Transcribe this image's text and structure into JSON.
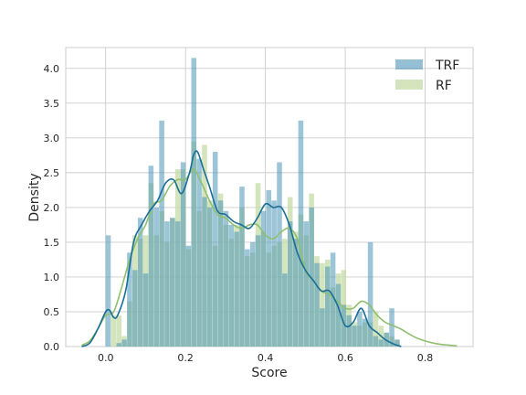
{
  "chart_data": {
    "type": "histogram",
    "xlabel": "Score",
    "ylabel": "Density",
    "xlim": [
      -0.1,
      0.92
    ],
    "ylim": [
      0,
      4.3
    ],
    "xticks": [
      0.0,
      0.2,
      0.4,
      0.6,
      0.8
    ],
    "xtick_labels": [
      "0.0",
      "0.2",
      "0.4",
      "0.6",
      "0.8"
    ],
    "yticks": [
      0.0,
      0.5,
      1.0,
      1.5,
      2.0,
      2.5,
      3.0,
      3.5,
      4.0
    ],
    "ytick_labels": [
      "0.0",
      "0.5",
      "1.0",
      "1.5",
      "2.0",
      "2.5",
      "3.0",
      "3.5",
      "4.0"
    ],
    "grid": true,
    "legend_position": "top-right",
    "series": [
      {
        "name": "TRF",
        "color": "#4c95b8",
        "line_color": "#1a6e96",
        "bin_start": 0.0,
        "bin_width": 0.0134,
        "values": [
          1.6,
          0.0,
          0.05,
          0.1,
          1.35,
          1.1,
          1.85,
          1.05,
          2.6,
          2.0,
          3.25,
          1.8,
          1.85,
          1.8,
          2.65,
          1.45,
          4.15,
          2.7,
          2.15,
          2.0,
          2.8,
          2.1,
          1.95,
          1.75,
          1.65,
          2.3,
          1.4,
          1.5,
          1.6,
          1.95,
          2.25,
          2.1,
          2.65,
          1.05,
          1.8,
          1.55,
          3.25,
          1.8,
          2.0,
          1.2,
          0.55,
          1.15,
          1.35,
          0.9,
          0.6,
          0.45,
          0.3,
          0.5,
          0.4,
          1.5,
          0.15,
          0.1,
          0.2,
          0.55,
          0.1
        ],
        "kde_x": [
          -0.06,
          -0.04,
          -0.02,
          0.0,
          0.01,
          0.02,
          0.03,
          0.05,
          0.07,
          0.09,
          0.11,
          0.13,
          0.15,
          0.17,
          0.19,
          0.21,
          0.22,
          0.23,
          0.245,
          0.26,
          0.28,
          0.3,
          0.32,
          0.34,
          0.36,
          0.38,
          0.4,
          0.42,
          0.44,
          0.46,
          0.48,
          0.5,
          0.52,
          0.54,
          0.56,
          0.58,
          0.6,
          0.62,
          0.64,
          0.66,
          0.68,
          0.7,
          0.72,
          0.74
        ],
        "kde_y": [
          0.0,
          0.05,
          0.25,
          0.5,
          0.52,
          0.42,
          0.45,
          0.8,
          1.5,
          1.75,
          1.95,
          2.1,
          2.35,
          2.4,
          2.2,
          2.5,
          2.75,
          2.8,
          2.55,
          2.3,
          1.95,
          1.9,
          1.8,
          1.75,
          1.7,
          1.85,
          2.05,
          2.0,
          2.0,
          1.75,
          1.35,
          1.1,
          0.95,
          0.8,
          0.8,
          0.6,
          0.3,
          0.35,
          0.55,
          0.3,
          0.2,
          0.1,
          0.04,
          0.0
        ]
      },
      {
        "name": "RF",
        "color": "#c6dba6",
        "line_color": "#8fbf6f",
        "bin_start": 0.0,
        "bin_width": 0.0134,
        "values": [
          0.0,
          0.45,
          0.45,
          0.15,
          0.65,
          1.6,
          1.55,
          1.6,
          2.35,
          1.6,
          1.95,
          1.5,
          1.85,
          2.55,
          2.55,
          1.4,
          2.95,
          1.95,
          2.9,
          2.1,
          1.45,
          2.2,
          1.75,
          1.55,
          1.75,
          2.0,
          1.3,
          1.35,
          2.35,
          1.65,
          1.35,
          1.45,
          1.5,
          1.55,
          2.15,
          1.65,
          1.9,
          1.6,
          2.2,
          1.3,
          1.2,
          1.25,
          0.85,
          1.05,
          1.1,
          0.6,
          0.35,
          0.3,
          0.35,
          0.35,
          0.5,
          0.3,
          0.2,
          0.15,
          0.1
        ],
        "kde_x": [
          -0.06,
          -0.04,
          -0.02,
          0.0,
          0.02,
          0.04,
          0.06,
          0.08,
          0.1,
          0.12,
          0.14,
          0.16,
          0.18,
          0.2,
          0.22,
          0.24,
          0.26,
          0.28,
          0.3,
          0.32,
          0.34,
          0.36,
          0.38,
          0.4,
          0.42,
          0.44,
          0.46,
          0.48,
          0.5,
          0.52,
          0.54,
          0.56,
          0.58,
          0.6,
          0.62,
          0.64,
          0.66,
          0.68,
          0.7,
          0.72,
          0.74,
          0.76,
          0.78,
          0.8,
          0.82,
          0.84,
          0.86,
          0.88
        ],
        "kde_y": [
          0.02,
          0.08,
          0.25,
          0.45,
          0.5,
          0.85,
          1.25,
          1.55,
          1.75,
          2.05,
          2.1,
          2.3,
          2.4,
          2.4,
          2.55,
          2.35,
          2.1,
          1.9,
          1.85,
          1.75,
          1.7,
          1.75,
          1.75,
          1.6,
          1.55,
          1.65,
          1.7,
          1.55,
          1.1,
          0.95,
          0.8,
          0.75,
          0.65,
          0.55,
          0.55,
          0.65,
          0.6,
          0.45,
          0.35,
          0.3,
          0.25,
          0.18,
          0.12,
          0.08,
          0.05,
          0.03,
          0.02,
          0.01
        ]
      }
    ]
  }
}
